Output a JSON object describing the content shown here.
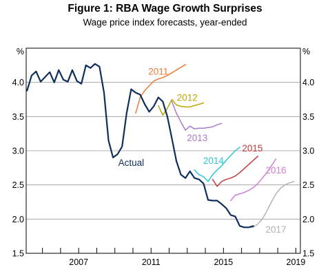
{
  "title": "Figure 1: RBA Wage Growth Surprises",
  "subtitle": "Wage price index forecasts, year-ended",
  "chart_data": {
    "type": "line",
    "ylabel_left": "%",
    "ylabel_right": "%",
    "xlim": [
      2004.1,
      2019.25
    ],
    "ylim": [
      1.5,
      4.5
    ],
    "y_ticks": [
      1.5,
      2.0,
      2.5,
      3.0,
      3.5,
      4.0
    ],
    "x_tick_labels": [
      "2007",
      "2011",
      "2015",
      "2019"
    ],
    "x_tick_values": [
      2007,
      2011,
      2015,
      2019
    ],
    "x_minor_ticks": [
      2005,
      2006,
      2007,
      2008,
      2009,
      2010,
      2011,
      2012,
      2013,
      2014,
      2015,
      2016,
      2017,
      2018,
      2019
    ],
    "grid": true,
    "series": [
      {
        "name": "Actual",
        "color": "#0f2d5c",
        "x": [
          2004.15,
          2004.4,
          2004.65,
          2004.9,
          2005.15,
          2005.4,
          2005.65,
          2005.9,
          2006.15,
          2006.4,
          2006.65,
          2006.9,
          2007.15,
          2007.4,
          2007.65,
          2007.9,
          2008.15,
          2008.4,
          2008.65,
          2008.9,
          2009.15,
          2009.4,
          2009.65,
          2009.9,
          2010.15,
          2010.4,
          2010.65,
          2010.9,
          2011.15,
          2011.4,
          2011.65,
          2011.9,
          2012.15,
          2012.4,
          2012.65,
          2012.9,
          2013.15,
          2013.4,
          2013.65,
          2013.9,
          2014.15,
          2014.4,
          2014.65,
          2014.9,
          2015.15,
          2015.4,
          2015.65,
          2015.9,
          2016.15,
          2016.4,
          2016.65
        ],
        "y": [
          3.88,
          4.1,
          4.16,
          4.01,
          4.08,
          4.15,
          4.0,
          4.18,
          4.04,
          4.01,
          4.18,
          4.02,
          3.98,
          4.25,
          4.21,
          4.27,
          4.23,
          3.85,
          3.15,
          2.9,
          2.95,
          3.06,
          3.55,
          3.9,
          3.85,
          3.82,
          3.68,
          3.57,
          3.65,
          3.78,
          3.72,
          3.5,
          3.18,
          2.85,
          2.65,
          2.6,
          2.7,
          2.6,
          2.58,
          2.52,
          2.28,
          2.27,
          2.27,
          2.22,
          2.16,
          2.06,
          2.04,
          1.9,
          1.88,
          1.88,
          1.9
        ]
      },
      {
        "name": "2011",
        "color": "#f07a3a",
        "x": [
          2010.15,
          2010.4,
          2010.65,
          2010.9,
          2011.15,
          2011.4,
          2011.65,
          2011.9,
          2012.15,
          2012.4,
          2012.65,
          2012.9
        ],
        "y": [
          3.55,
          3.78,
          3.88,
          3.95,
          4.02,
          4.05,
          4.07,
          4.1,
          4.14,
          4.18,
          4.22,
          4.26
        ]
      },
      {
        "name": "2012",
        "color": "#bfa500",
        "x": [
          2011.4,
          2011.65,
          2011.9,
          2012.15,
          2012.4,
          2012.65,
          2012.9,
          2013.15,
          2013.4,
          2013.65,
          2013.9
        ],
        "y": [
          3.66,
          3.52,
          3.62,
          3.75,
          3.67,
          3.65,
          3.64,
          3.64,
          3.66,
          3.68,
          3.7
        ]
      },
      {
        "name": "2013",
        "color": "#a97bc8",
        "x": [
          2012.15,
          2012.4,
          2012.65,
          2012.9,
          2013.15,
          2013.4,
          2013.65,
          2013.9,
          2014.15,
          2014.4,
          2014.65,
          2014.9
        ],
        "y": [
          3.72,
          3.55,
          3.42,
          3.3,
          3.36,
          3.32,
          3.33,
          3.33,
          3.34,
          3.35,
          3.38,
          3.4
        ]
      },
      {
        "name": "2014",
        "color": "#31c6d8",
        "x": [
          2013.4,
          2013.65,
          2013.9,
          2014.15,
          2014.4,
          2014.65,
          2014.9,
          2015.15,
          2015.4,
          2015.65,
          2015.9
        ],
        "y": [
          2.72,
          2.65,
          2.62,
          2.55,
          2.65,
          2.72,
          2.78,
          2.86,
          2.93,
          3.0,
          3.05
        ]
      },
      {
        "name": "2015",
        "color": "#c23b3b",
        "x": [
          2014.4,
          2014.65,
          2014.9,
          2015.15,
          2015.4,
          2015.65,
          2015.9,
          2016.15,
          2016.4,
          2016.65,
          2016.9
        ],
        "y": [
          2.58,
          2.48,
          2.55,
          2.58,
          2.6,
          2.63,
          2.68,
          2.74,
          2.8,
          2.86,
          2.92
        ]
      },
      {
        "name": "2016",
        "color": "#d37dd6",
        "x": [
          2015.4,
          2015.65,
          2015.9,
          2016.15,
          2016.4,
          2016.65,
          2016.9,
          2017.15,
          2017.4,
          2017.65,
          2017.9
        ],
        "y": [
          2.27,
          2.35,
          2.37,
          2.39,
          2.42,
          2.46,
          2.52,
          2.6,
          2.68,
          2.78,
          2.88
        ]
      },
      {
        "name": "2017",
        "color": "#b2b2b2",
        "x": [
          2016.4,
          2016.65,
          2016.9,
          2017.15,
          2017.4,
          2017.65,
          2017.9,
          2018.15,
          2018.4,
          2018.65,
          2018.9
        ],
        "y": [
          1.88,
          1.88,
          1.93,
          2.0,
          2.12,
          2.25,
          2.37,
          2.45,
          2.5,
          2.53,
          2.55
        ]
      }
    ],
    "annotations": [
      {
        "text": "Actual",
        "series": "Actual",
        "x": 2009.9,
        "y": 2.78
      },
      {
        "text": "2011",
        "series": "2011",
        "x": 2011.4,
        "y": 4.11
      },
      {
        "text": "2012",
        "series": "2012",
        "x": 2013.0,
        "y": 3.73
      },
      {
        "text": "2013",
        "series": "2013",
        "x": 2013.55,
        "y": 3.14
      },
      {
        "text": "2014",
        "series": "2014",
        "x": 2014.45,
        "y": 2.81
      },
      {
        "text": "2015",
        "series": "2015",
        "x": 2016.6,
        "y": 2.99
      },
      {
        "text": "2016",
        "series": "2016",
        "x": 2017.9,
        "y": 2.67
      },
      {
        "text": "2017",
        "series": "2017",
        "x": 2017.9,
        "y": 1.8
      }
    ]
  }
}
